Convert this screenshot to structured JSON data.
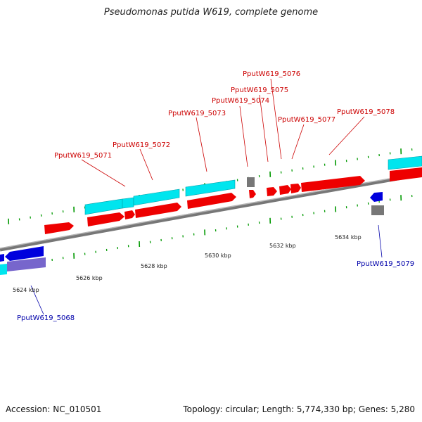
{
  "title": "Pseudomonas putida W619, complete genome",
  "footer": {
    "accession": "Accession: NC_010501",
    "summary": "Topology: circular; Length: 5,774,330 bp; Genes: 5,280"
  },
  "colors": {
    "forward_cds": "#ee0000",
    "reverse_cds": "#0000dd",
    "rna": "#00e5ee",
    "reverse_rna": "#7766cc",
    "pseudo": "#777777",
    "label_forward": "#cc0000",
    "label_reverse": "#0000aa",
    "tick_green": "#009900",
    "backbone": "#888888"
  },
  "scale": {
    "ticks": [
      "5624 kbp",
      "5626 kbp",
      "5628 kbp",
      "5630 kbp",
      "5632 kbp",
      "5634 kbp"
    ]
  },
  "labels": [
    {
      "text": "PputW619_5071",
      "strand": "forward"
    },
    {
      "text": "PputW619_5072",
      "strand": "forward"
    },
    {
      "text": "PputW619_5073",
      "strand": "forward"
    },
    {
      "text": "PputW619_5074",
      "strand": "forward"
    },
    {
      "text": "PputW619_5075",
      "strand": "forward"
    },
    {
      "text": "PputW619_5076",
      "strand": "forward"
    },
    {
      "text": "PputW619_5077",
      "strand": "forward"
    },
    {
      "text": "PputW619_5078",
      "strand": "forward"
    },
    {
      "text": "PputW619_5068",
      "strand": "reverse"
    },
    {
      "text": "PputW619_5079",
      "strand": "reverse"
    }
  ]
}
